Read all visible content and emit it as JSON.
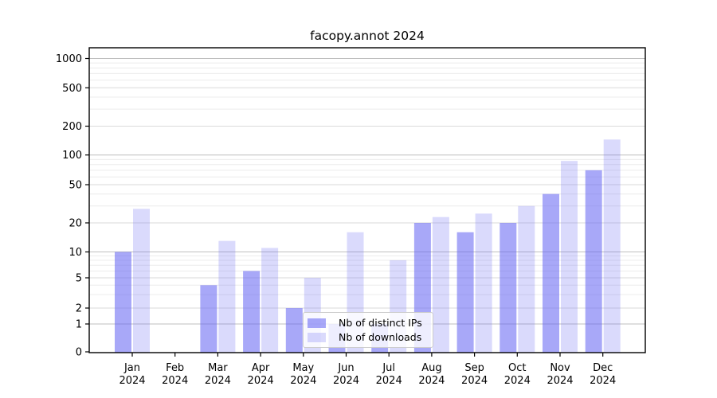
{
  "title": "facopy.annot 2024",
  "chart_data": {
    "type": "bar",
    "title": "facopy.annot 2024",
    "categories": [
      "Jan",
      "Feb",
      "Mar",
      "Apr",
      "May",
      "Jun",
      "Jul",
      "Aug",
      "Sep",
      "Oct",
      "Nov",
      "Dec"
    ],
    "year_label": "2024",
    "series": [
      {
        "name": "Nb of distinct IPs",
        "values": [
          10,
          0,
          4,
          6,
          2,
          1,
          1,
          20,
          16,
          20,
          40,
          70
        ]
      },
      {
        "name": "Nb of downloads",
        "values": [
          28,
          0,
          13,
          11,
          5,
          16,
          8,
          23,
          25,
          30,
          87,
          145
        ]
      }
    ],
    "y_axis": {
      "scale": "symlog",
      "ticks": [
        0,
        1,
        2,
        5,
        10,
        20,
        50,
        100,
        200,
        500,
        1000
      ],
      "minor_gridlines": [
        3,
        4,
        6,
        7,
        8,
        9,
        30,
        40,
        60,
        70,
        80,
        90,
        300,
        400,
        600,
        700,
        800,
        900
      ]
    },
    "grid": true,
    "legend_position": "lower center",
    "colors": {
      "bar_base": "#6161f2",
      "ips_alpha": 0.55,
      "downloads_alpha": 0.235,
      "grid_major": "#bfbfbf",
      "grid_mid": "#dadada",
      "grid_minor": "#ececec",
      "axis": "#000000",
      "text": "#000000"
    }
  }
}
